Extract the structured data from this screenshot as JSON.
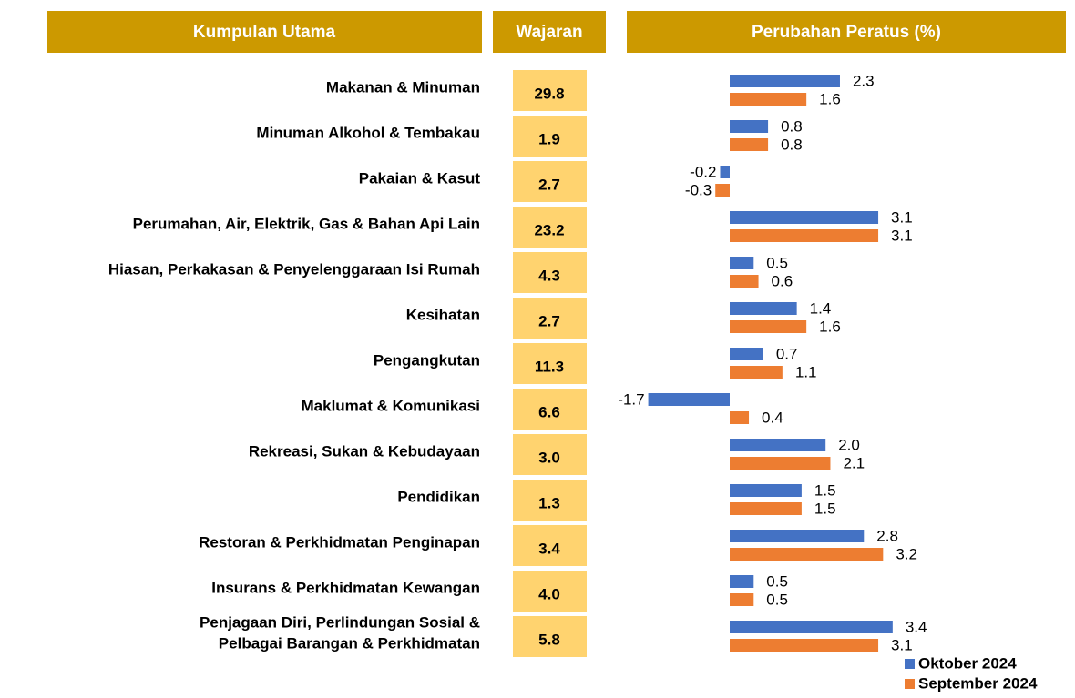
{
  "chart_data": {
    "type": "barh",
    "headers": [
      "Kumpulan Utama",
      "Wajaran",
      "Perubahan Peratus (%)"
    ],
    "categories": [
      "Makanan & Minuman",
      "Minuman Alkohol & Tembakau",
      "Pakaian & Kasut",
      "Perumahan, Air, Elektrik, Gas & Bahan Api Lain",
      "Hiasan, Perkakasan & Penyelenggaraan Isi Rumah",
      "Kesihatan",
      "Pengangkutan",
      "Maklumat & Komunikasi",
      "Rekreasi, Sukan & Kebudayaan",
      "Pendidikan",
      "Restoran & Perkhidmatan Penginapan",
      "Insurans & Perkhidmatan Kewangan",
      "Penjagaan Diri, Perlindungan Sosial &\nPelbagai Barangan & Perkhidmatan"
    ],
    "weights": {
      "values": [
        29.8,
        1.9,
        2.7,
        23.2,
        4.3,
        2.7,
        11.3,
        6.6,
        3.0,
        1.3,
        3.4,
        4.0,
        5.8
      ],
      "value_labels": [
        "29.8",
        "1.9",
        "2.7",
        "23.2",
        "4.3",
        "2.7",
        "11.3",
        "6.6",
        "3.0",
        "1.3",
        "3.4",
        "4.0",
        "5.8"
      ]
    },
    "series": [
      {
        "name": "Oktober 2024",
        "color": "#4472c4",
        "values": [
          2.3,
          0.8,
          -0.2,
          3.1,
          0.5,
          1.4,
          0.7,
          -1.7,
          2.0,
          1.5,
          2.8,
          0.5,
          3.4
        ],
        "value_labels": [
          "2.3",
          "0.8",
          "-0.2",
          "3.1",
          "0.5",
          "1.4",
          "0.7",
          "-1.7",
          "2.0",
          "1.5",
          "2.8",
          "0.5",
          "3.4"
        ]
      },
      {
        "name": "September 2024",
        "color": "#ed7d31",
        "values": [
          1.6,
          0.8,
          -0.3,
          3.1,
          0.6,
          1.6,
          1.1,
          0.4,
          2.1,
          1.5,
          3.2,
          0.5,
          3.1
        ],
        "value_labels": [
          "1.6",
          "0.8",
          "-0.3",
          "3.1",
          "0.6",
          "1.6",
          "1.1",
          "0.4",
          "2.1",
          "1.5",
          "3.2",
          "0.5",
          "3.1"
        ]
      }
    ]
  }
}
